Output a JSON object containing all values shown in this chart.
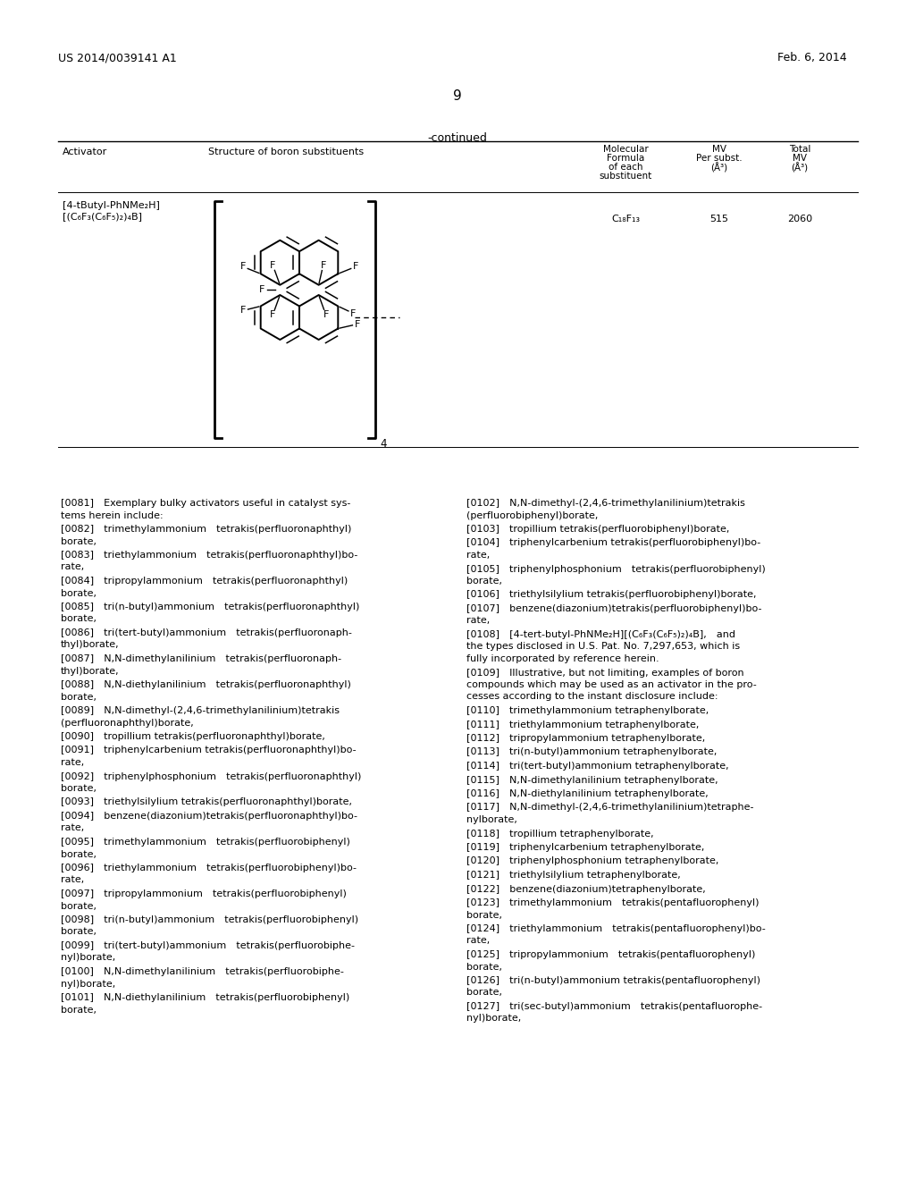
{
  "page_number": "9",
  "patent_number": "US 2014/0039141 A1",
  "patent_date": "Feb. 6, 2014",
  "continued_label": "-continued",
  "table_headers": [
    "Activator",
    "Structure of boron substituents",
    "Molecular Formula of each substituent",
    "MV Per subst. (Å³)",
    "Total MV (Å³)"
  ],
  "activator_col1": "[4-tButyl-PhNMe₂H]\n[(C₆F₃(C₆F₅)₂)₄B]",
  "mol_formula": "C₁₈F₁₃",
  "mv_per_subst": "515",
  "total_mv": "2060",
  "left_col_paragraphs": [
    "[0081] Exemplary bulky activators useful in catalyst sys-\ntems herein include:",
    "[0082] trimethylammonium tetrakis(perfluoronaphthyl)\nborate,",
    "[0083] triethylammonium tetrakis(perfluoronaphthyl)bo-\nrate,",
    "[0084] tripropylammonium tetrakis(perfluoronaphthyl)\nborate,",
    "[0085] tri(n-butyl)ammonium tetrakis(perfluoronaphthyl)\nborate,",
    "[0086] tri(tert-butyl)ammonium tetrakis(perfluoronaph-\nthyl)borate,",
    "[0087] N,N-dimethylanilinium tetrakis(perfluoronaph-\nthyl)borate,",
    "[0088] N,N-diethylanilinium tetrakis(perfluoronaphthyl)\nborate,",
    "[0089] N,N-dimethyl-(2,4,6-trimethylanilinium)tetrakis\n(perfluoronaphthyl)borate,",
    "[0090] tropillium tetrakis(perfluoronaphthyl)borate,",
    "[0091] triphenylcarbenium tetrakis(perfluoronaphthyl)bo-\nrate,",
    "[0092] triphenylphosphonium tetrakis(perfluoronaphthyl)\nborate,",
    "[0093] triethylsilylium tetrakis(perfluoronaphthyl)borate,",
    "[0094] benzene(diazonium)tetrakis(perfluoronaphthyl)bo-\nrate,",
    "[0095] trimethylammonium tetrakis(perfluorobiphenyl)\nborate,",
    "[0096] triethylammonium tetrakis(perfluorobiphenyl)bo-\nrate,",
    "[0097] tripropylammonium tetrakis(perfluorobiphenyl)\nborate,",
    "[0098] tri(n-butyl)ammonium tetrakis(perfluorobiphenyl)\nborate,",
    "[0099] tri(tert-butyl)ammonium tetrakis(perfluorobiphe-\nnyl)borate,",
    "[0100] N,N-dimethylanilinium tetrakis(perfluorobiphe-\nnyl)borate,",
    "[0101] N,N-diethylanilinium tetrakis(perfluorobiphenyl)\nborate,"
  ],
  "right_col_paragraphs": [
    "[0102] N,N-dimethyl-(2,4,6-trimethylanilinium)tetrakis\n(perfluorobiphenyl)borate,",
    "[0103] tropillium tetrakis(perfluorobiphenyl)borate,",
    "[0104] triphenylcarbenium tetrakis(perfluorobiphenyl)bo-\nrate,",
    "[0105] triphenylphosphonium tetrakis(perfluorobiphenyl)\nborate,",
    "[0106] triethylsilylium tetrakis(perfluorobiphenyl)borate,",
    "[0107] benzene(diazonium)tetrakis(perfluorobiphenyl)bo-\nrate,",
    "[0108] [4-tert-butyl-PhNMe₂H][(C₆F₃(C₆F₅)₂)₄B], and\nthe types disclosed in U.S. Pat. No. 7,297,653, which is\nfully incorporated by reference herein.",
    "[0109] Illustrative, but not limiting, examples of boron\ncompounds which may be used as an activator in the pro-\ncesses according to the instant disclosure include:",
    "[0110] trimethylammonium tetraphenylborate,",
    "[0111] triethylammonium tetraphenylborate,",
    "[0112] tripropylammonium tetraphenylborate,",
    "[0113] tri(n-butyl)ammonium tetraphenylborate,",
    "[0114] tri(tert-butyl)ammonium tetraphenylborate,",
    "[0115] N,N-dimethylanilinium tetraphenylborate,",
    "[0116] N,N-diethylanilinium tetraphenylborate,",
    "[0117] N,N-dimethyl-(2,4,6-trimethylanilinium)tetraphe-\nnylborate,",
    "[0118] tropillium tetraphenylborate,",
    "[0119] triphenylcarbenium tetraphenylborate,",
    "[0120] triphenylphosphonium tetraphenylborate,",
    "[0121] triethylsilylium tetraphenylborate,",
    "[0122] benzene(diazonium)tetraphenylborate,",
    "[0123] trimethylammonium tetrakis(pentafluorophenyl)\nborate,",
    "[0124] triethylammonium tetrakis(pentafluorophenyl)bo-\nrate,",
    "[0125] tripropylammonium tetrakis(pentafluorophenyl)\nborate,",
    "[0126] tri(n-butyl)ammonium tetrakis(pentafluorophenyl)\nborate,",
    "[0127] tri(sec-butyl)ammonium tetrakis(pentafluorophe-\nnyl)borate,"
  ],
  "bg_color": "#ffffff",
  "text_color": "#000000"
}
